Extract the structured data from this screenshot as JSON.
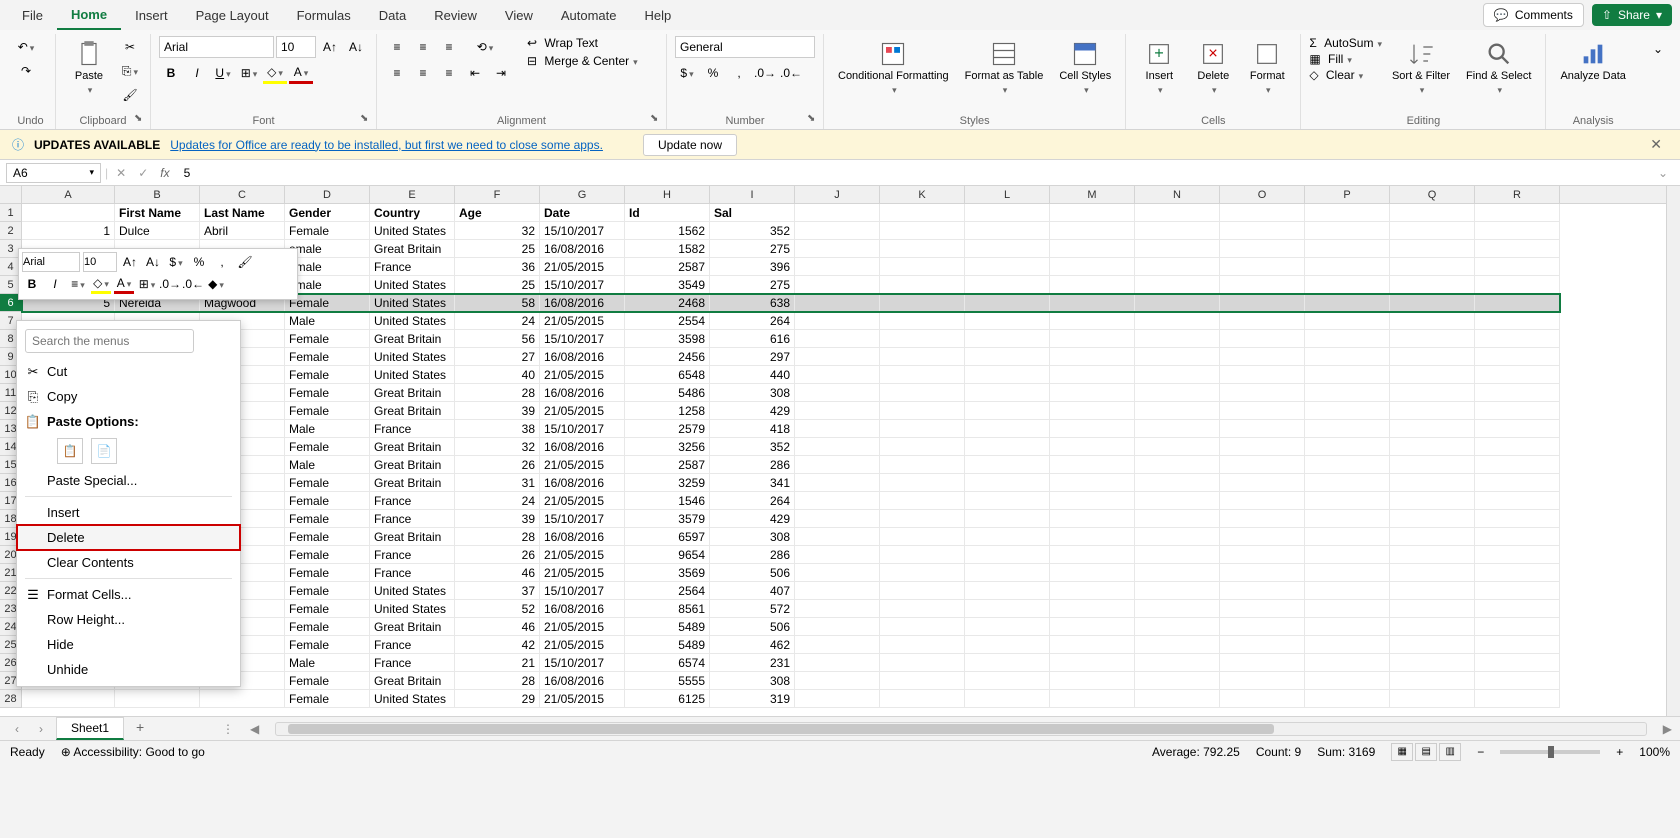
{
  "menubar": {
    "items": [
      "File",
      "Home",
      "Insert",
      "Page Layout",
      "Formulas",
      "Data",
      "Review",
      "View",
      "Automate",
      "Help"
    ],
    "active": "Home",
    "comments": "Comments",
    "share": "Share"
  },
  "ribbon": {
    "undo": {
      "label": "Undo"
    },
    "clipboard": {
      "label": "Clipboard",
      "paste": "Paste"
    },
    "font": {
      "label": "Font",
      "name": "Arial",
      "size": "10"
    },
    "alignment": {
      "label": "Alignment",
      "wrap": "Wrap Text",
      "merge": "Merge & Center"
    },
    "number": {
      "label": "Number",
      "format": "General"
    },
    "styles": {
      "label": "Styles",
      "conditional": "Conditional Formatting",
      "formatTable": "Format as Table",
      "cellStyles": "Cell Styles"
    },
    "cells": {
      "label": "Cells",
      "insert": "Insert",
      "delete": "Delete",
      "format": "Format"
    },
    "editing": {
      "label": "Editing",
      "autosum": "AutoSum",
      "fill": "Fill",
      "clear": "Clear",
      "sort": "Sort & Filter",
      "find": "Find & Select"
    },
    "analysis": {
      "label": "Analysis",
      "analyze": "Analyze Data"
    }
  },
  "updateBar": {
    "title": "UPDATES AVAILABLE",
    "msg": "Updates for Office are ready to be installed, but first we need to close some apps.",
    "btn": "Update now"
  },
  "formulaBar": {
    "cellRef": "A6",
    "value": "5"
  },
  "grid": {
    "columns": [
      "A",
      "B",
      "C",
      "D",
      "E",
      "F",
      "G",
      "H",
      "I",
      "J",
      "K",
      "L",
      "M",
      "N",
      "O",
      "P",
      "Q",
      "R"
    ],
    "headers": [
      "",
      "First Name",
      "Last Name",
      "Gender",
      "Country",
      "Age",
      "Date",
      "Id",
      "Sal"
    ],
    "selectedRow": 6,
    "rows": [
      {
        "n": 1,
        "a": "1",
        "b": "Dulce",
        "c": "Abril",
        "d": "Female",
        "e": "United States",
        "f": "32",
        "g": "15/10/2017",
        "h": "1562",
        "i": "352"
      },
      {
        "n": 2,
        "a": "",
        "b": "",
        "c": "",
        "d": "emale",
        "e": "Great Britain",
        "f": "25",
        "g": "16/08/2016",
        "h": "1582",
        "i": "275"
      },
      {
        "n": 3,
        "a": "",
        "b": "",
        "c": "",
        "d": "emale",
        "e": "France",
        "f": "36",
        "g": "21/05/2015",
        "h": "2587",
        "i": "396"
      },
      {
        "n": 4,
        "a": "",
        "b": "",
        "c": "",
        "d": "emale",
        "e": "United States",
        "f": "25",
        "g": "15/10/2017",
        "h": "3549",
        "i": "275"
      },
      {
        "n": 5,
        "a": "5",
        "b": "Nereida",
        "c": "Magwood",
        "d": "Female",
        "e": "United States",
        "f": "58",
        "g": "16/08/2016",
        "h": "2468",
        "i": "638"
      },
      {
        "n": 6,
        "a": "",
        "b": "",
        "c": "",
        "d": "Male",
        "e": "United States",
        "f": "24",
        "g": "21/05/2015",
        "h": "2554",
        "i": "264"
      },
      {
        "n": 7,
        "a": "",
        "b": "",
        "c": "",
        "d": "Female",
        "e": "Great Britain",
        "f": "56",
        "g": "15/10/2017",
        "h": "3598",
        "i": "616"
      },
      {
        "n": 8,
        "a": "",
        "b": "",
        "c": "",
        "d": "Female",
        "e": "United States",
        "f": "27",
        "g": "16/08/2016",
        "h": "2456",
        "i": "297"
      },
      {
        "n": 9,
        "a": "",
        "b": "",
        "c": "d",
        "d": "Female",
        "e": "United States",
        "f": "40",
        "g": "21/05/2015",
        "h": "6548",
        "i": "440"
      },
      {
        "n": 10,
        "a": "",
        "b": "",
        "c": "rd",
        "d": "Female",
        "e": "Great Britain",
        "f": "28",
        "g": "16/08/2016",
        "h": "5486",
        "i": "308"
      },
      {
        "n": 11,
        "a": "",
        "b": "",
        "c": "a",
        "d": "Female",
        "e": "Great Britain",
        "f": "39",
        "g": "21/05/2015",
        "h": "1258",
        "i": "429"
      },
      {
        "n": 12,
        "a": "",
        "b": "",
        "c": "w",
        "d": "Male",
        "e": "France",
        "f": "38",
        "g": "15/10/2017",
        "h": "2579",
        "i": "418"
      },
      {
        "n": 13,
        "a": "",
        "b": "",
        "c": "cio",
        "d": "Female",
        "e": "Great Britain",
        "f": "32",
        "g": "16/08/2016",
        "h": "3256",
        "i": "352"
      },
      {
        "n": 14,
        "a": "",
        "b": "",
        "c": "ie",
        "d": "Male",
        "e": "Great Britain",
        "f": "26",
        "g": "21/05/2015",
        "h": "2587",
        "i": "286"
      },
      {
        "n": 15,
        "a": "",
        "b": "",
        "c": "on",
        "d": "Female",
        "e": "Great Britain",
        "f": "31",
        "g": "16/08/2016",
        "h": "3259",
        "i": "341"
      },
      {
        "n": 16,
        "a": "",
        "b": "",
        "c": "",
        "d": "Female",
        "e": "France",
        "f": "24",
        "g": "21/05/2015",
        "h": "1546",
        "i": "264"
      },
      {
        "n": 17,
        "a": "",
        "b": "",
        "c": "",
        "d": "Female",
        "e": "France",
        "f": "39",
        "g": "15/10/2017",
        "h": "3579",
        "i": "429"
      },
      {
        "n": 18,
        "a": "",
        "b": "",
        "c": "e",
        "d": "Female",
        "e": "Great Britain",
        "f": "28",
        "g": "16/08/2016",
        "h": "6597",
        "i": "308"
      },
      {
        "n": 19,
        "a": "",
        "b": "",
        "c": "",
        "d": "Female",
        "e": "France",
        "f": "26",
        "g": "21/05/2015",
        "h": "9654",
        "i": "286"
      },
      {
        "n": 20,
        "a": "",
        "b": "",
        "c": "",
        "d": "Female",
        "e": "France",
        "f": "46",
        "g": "21/05/2015",
        "h": "3569",
        "i": "506"
      },
      {
        "n": 21,
        "a": "",
        "b": "",
        "c": "",
        "d": "Female",
        "e": "United States",
        "f": "37",
        "g": "15/10/2017",
        "h": "2564",
        "i": "407"
      },
      {
        "n": 22,
        "a": "",
        "b": "",
        "c": "rd",
        "d": "Female",
        "e": "United States",
        "f": "52",
        "g": "16/08/2016",
        "h": "8561",
        "i": "572"
      },
      {
        "n": 23,
        "a": "",
        "b": "",
        "c": "",
        "d": "Female",
        "e": "Great Britain",
        "f": "46",
        "g": "21/05/2015",
        "h": "5489",
        "i": "506"
      },
      {
        "n": 24,
        "a": "",
        "b": "",
        "c": "",
        "d": "Female",
        "e": "France",
        "f": "42",
        "g": "21/05/2015",
        "h": "5489",
        "i": "462"
      },
      {
        "n": 25,
        "a": "",
        "b": "",
        "c": "o",
        "d": "Male",
        "e": "France",
        "f": "21",
        "g": "15/10/2017",
        "h": "6574",
        "i": "231"
      },
      {
        "n": 26,
        "a": "",
        "b": "",
        "c": "",
        "d": "Female",
        "e": "Great Britain",
        "f": "28",
        "g": "16/08/2016",
        "h": "5555",
        "i": "308"
      },
      {
        "n": 27,
        "a": "",
        "b": "",
        "c": "",
        "d": "Female",
        "e": "United States",
        "f": "29",
        "g": "21/05/2015",
        "h": "6125",
        "i": "319"
      }
    ]
  },
  "miniToolbar": {
    "font": "Arial",
    "size": "10"
  },
  "contextMenu": {
    "searchPlaceholder": "Search the menus",
    "cut": "Cut",
    "copy": "Copy",
    "pasteOptions": "Paste Options:",
    "pasteSpecial": "Paste Special...",
    "insert": "Insert",
    "delete": "Delete",
    "clearContents": "Clear Contents",
    "formatCells": "Format Cells...",
    "rowHeight": "Row Height...",
    "hide": "Hide",
    "unhide": "Unhide"
  },
  "sheetTabs": {
    "sheet1": "Sheet1"
  },
  "statusBar": {
    "ready": "Ready",
    "accessibility": "Accessibility: Good to go",
    "average": "Average: 792.25",
    "count": "Count: 9",
    "sum": "Sum: 3169",
    "zoom": "100%"
  }
}
